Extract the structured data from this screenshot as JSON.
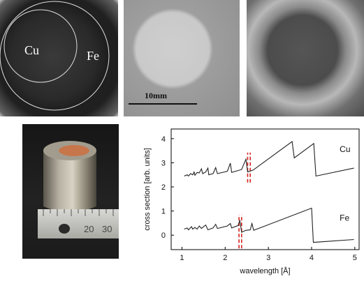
{
  "figure": {
    "panel_a": {
      "label_inner": "Cu",
      "label_outer": "Fe"
    },
    "panel_b": {
      "scale_text": "10mm"
    },
    "panel_d": {
      "ruler_numbers": [
        "20",
        "30"
      ]
    }
  },
  "chart_data": {
    "type": "line",
    "xlabel": "wavelength [Å]",
    "ylabel": "cross section [arb. units]",
    "xlim": [
      0.75,
      5.1
    ],
    "ylim": [
      -0.6,
      4.4
    ],
    "xticks": [
      "1",
      "2",
      "3",
      "4",
      "5"
    ],
    "yticks": [
      "0",
      "1",
      "2",
      "3",
      "4"
    ],
    "series": [
      {
        "name": "Cu",
        "color": "#222222",
        "points": [
          [
            1.05,
            2.45
          ],
          [
            1.12,
            2.5
          ],
          [
            1.15,
            2.45
          ],
          [
            1.2,
            2.55
          ],
          [
            1.25,
            2.5
          ],
          [
            1.28,
            2.62
          ],
          [
            1.3,
            2.48
          ],
          [
            1.35,
            2.6
          ],
          [
            1.4,
            2.58
          ],
          [
            1.45,
            2.75
          ],
          [
            1.48,
            2.55
          ],
          [
            1.55,
            2.62
          ],
          [
            1.6,
            2.78
          ],
          [
            1.62,
            2.5
          ],
          [
            1.72,
            2.55
          ],
          [
            1.78,
            2.8
          ],
          [
            1.82,
            2.55
          ],
          [
            2.05,
            2.65
          ],
          [
            2.12,
            2.98
          ],
          [
            2.15,
            2.6
          ],
          [
            2.38,
            2.72
          ],
          [
            2.48,
            3.15
          ],
          [
            2.52,
            2.62
          ],
          [
            2.65,
            2.7
          ],
          [
            3.55,
            3.88
          ],
          [
            3.6,
            3.2
          ],
          [
            4.05,
            3.8
          ],
          [
            4.1,
            2.45
          ],
          [
            4.98,
            2.78
          ]
        ]
      },
      {
        "name": "Fe",
        "color": "#222222",
        "points": [
          [
            1.05,
            0.25
          ],
          [
            1.12,
            0.3
          ],
          [
            1.15,
            0.22
          ],
          [
            1.22,
            0.35
          ],
          [
            1.25,
            0.25
          ],
          [
            1.3,
            0.32
          ],
          [
            1.35,
            0.25
          ],
          [
            1.4,
            0.38
          ],
          [
            1.45,
            0.28
          ],
          [
            1.5,
            0.35
          ],
          [
            1.55,
            0.42
          ],
          [
            1.6,
            0.22
          ],
          [
            1.72,
            0.3
          ],
          [
            1.78,
            0.45
          ],
          [
            1.82,
            0.28
          ],
          [
            2.05,
            0.38
          ],
          [
            2.12,
            0.48
          ],
          [
            2.15,
            0.3
          ],
          [
            2.3,
            0.4
          ],
          [
            2.34,
            0.62
          ],
          [
            2.38,
            0.12
          ],
          [
            2.48,
            0.2
          ],
          [
            2.58,
            0.22
          ],
          [
            2.62,
            0.48
          ],
          [
            2.66,
            0.2
          ],
          [
            4.0,
            1.12
          ],
          [
            4.04,
            -0.3
          ],
          [
            4.98,
            -0.18
          ]
        ]
      }
    ],
    "series_labels": [
      {
        "text": "Cu",
        "x": 4.65,
        "y": 3.45
      },
      {
        "text": "Fe",
        "x": 4.65,
        "y": 0.6
      }
    ],
    "vlines": [
      {
        "x": 2.32,
        "y0": -0.55,
        "y1": 0.85,
        "color": "#d62020"
      },
      {
        "x": 2.38,
        "y0": -0.55,
        "y1": 0.85,
        "color": "#d62020"
      },
      {
        "x": 2.52,
        "y0": 2.18,
        "y1": 3.42,
        "color": "#d62020"
      },
      {
        "x": 2.58,
        "y0": 2.18,
        "y1": 3.42,
        "color": "#d62020"
      }
    ]
  }
}
